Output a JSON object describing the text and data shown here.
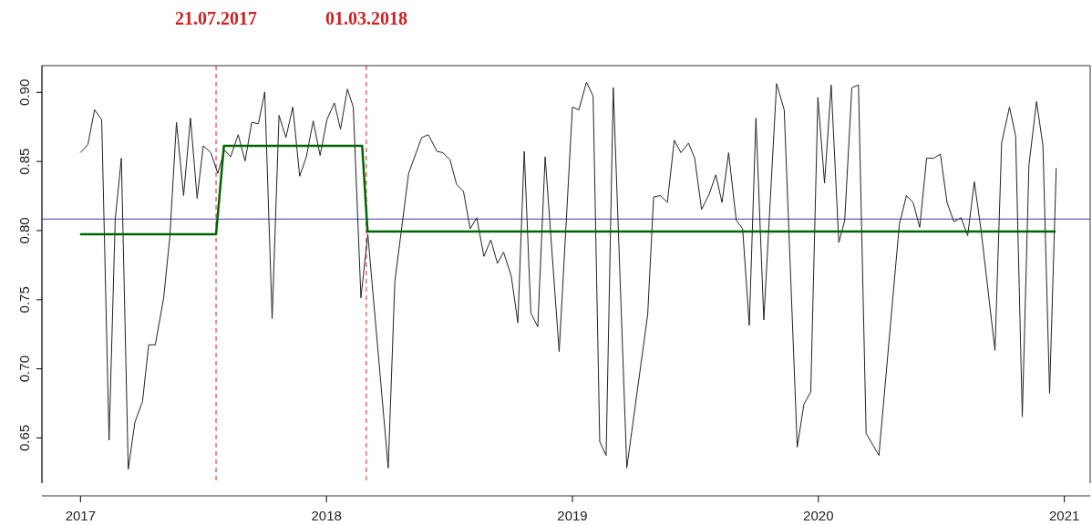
{
  "chart_data": {
    "type": "line",
    "marker": "none",
    "line_style": "solid",
    "grid": false,
    "xlim": [
      2016.845,
      2021.107
    ],
    "ylim": [
      0.617,
      0.919
    ],
    "xticks": [
      2017,
      2018,
      2019,
      2020,
      2021
    ],
    "yticks": [
      0.65,
      {
        "value": 0.7,
        "label": "0.70"
      },
      0.75,
      {
        "value": 0.8,
        "label": "0.80"
      },
      0.85,
      {
        "value": 0.9,
        "label": "0.90"
      }
    ],
    "series": [
      {
        "color": "#222222",
        "x": [
          2017.001,
          2017.032,
          2017.059,
          2017.088,
          2017.118,
          2017.143,
          2017.168,
          2017.196,
          2017.223,
          2017.254,
          2017.279,
          2017.306,
          2017.34,
          2017.365,
          2017.392,
          2017.421,
          2017.449,
          2017.476,
          2017.501,
          2017.532,
          2017.56,
          2017.587,
          2017.612,
          2017.643,
          2017.671,
          2017.698,
          2017.725,
          2017.751,
          2017.781,
          2017.809,
          2017.837,
          2017.865,
          2017.893,
          2017.92,
          2017.948,
          2017.976,
          2018.004,
          2018.034,
          2018.059,
          2018.087,
          2018.111,
          2018.142,
          2018.17,
          2018.253,
          2018.28,
          2018.336,
          2018.389,
          2018.416,
          2018.451,
          2018.475,
          2018.504,
          2018.531,
          2018.559,
          2018.586,
          2018.613,
          2018.642,
          2018.67,
          2018.697,
          2018.722,
          2018.753,
          2018.78,
          2018.806,
          2018.833,
          2018.861,
          2018.891,
          2018.948,
          2019.002,
          2019.028,
          2019.059,
          2019.086,
          2019.113,
          2019.139,
          2019.168,
          2019.223,
          2019.308,
          2019.332,
          2019.36,
          2019.388,
          2019.416,
          2019.443,
          2019.474,
          2019.499,
          2019.527,
          2019.558,
          2019.585,
          2019.61,
          2019.637,
          2019.668,
          2019.694,
          2019.721,
          2019.748,
          2019.78,
          2019.832,
          2019.863,
          2019.916,
          2019.943,
          2019.971,
          2020.0,
          2020.027,
          2020.054,
          2020.085,
          2020.109,
          2020.138,
          2020.165,
          2020.196,
          2020.248,
          2020.331,
          2020.36,
          2020.387,
          2020.414,
          2020.442,
          2020.471,
          2020.498,
          2020.525,
          2020.553,
          2020.582,
          2020.609,
          2020.636,
          2020.664,
          2020.72,
          2020.747,
          2020.779,
          2020.804,
          2020.831,
          2020.858,
          2020.889,
          2020.915,
          2020.942,
          2020.969
        ],
        "values": [
          0.856,
          0.862,
          0.887,
          0.88,
          0.648,
          0.808,
          0.852,
          0.627,
          0.661,
          0.676,
          0.717,
          0.717,
          0.751,
          0.795,
          0.878,
          0.825,
          0.881,
          0.823,
          0.861,
          0.856,
          0.841,
          0.858,
          0.853,
          0.869,
          0.85,
          0.878,
          0.877,
          0.9,
          0.736,
          0.883,
          0.867,
          0.889,
          0.839,
          0.853,
          0.879,
          0.854,
          0.88,
          0.892,
          0.873,
          0.902,
          0.889,
          0.751,
          0.797,
          0.628,
          0.763,
          0.841,
          0.867,
          0.869,
          0.857,
          0.856,
          0.851,
          0.833,
          0.828,
          0.801,
          0.809,
          0.781,
          0.793,
          0.776,
          0.784,
          0.767,
          0.733,
          0.857,
          0.74,
          0.73,
          0.853,
          0.712,
          0.889,
          0.887,
          0.907,
          0.897,
          0.647,
          0.637,
          0.903,
          0.628,
          0.739,
          0.824,
          0.825,
          0.82,
          0.865,
          0.856,
          0.863,
          0.852,
          0.815,
          0.826,
          0.84,
          0.82,
          0.856,
          0.807,
          0.801,
          0.731,
          0.881,
          0.735,
          0.906,
          0.887,
          0.643,
          0.674,
          0.683,
          0.896,
          0.834,
          0.905,
          0.791,
          0.807,
          0.903,
          0.905,
          0.653,
          0.637,
          0.804,
          0.825,
          0.82,
          0.802,
          0.852,
          0.852,
          0.855,
          0.82,
          0.806,
          0.809,
          0.796,
          0.835,
          0.799,
          0.713,
          0.863,
          0.889,
          0.868,
          0.665,
          0.847,
          0.893,
          0.861,
          0.682,
          0.845
        ]
      },
      {
        "type": "line",
        "color": "#006400",
        "x": [
          2017.0,
          2017.553,
          2017.585,
          2018.147,
          2018.169,
          2020.967
        ],
        "values": [
          0.797,
          0.797,
          0.861,
          0.861,
          0.799,
          0.799
        ]
      }
    ],
    "ref_lines": [
      {
        "axis": "y",
        "value": 0.808,
        "color": "#3a3aa8",
        "line_style": "solid"
      },
      {
        "axis": "x",
        "value": 2017.553,
        "label": "21.07.2017",
        "color": "#cc2222",
        "line_style": "dashed"
      },
      {
        "axis": "x",
        "value": 2018.164,
        "label": "01.03.2018",
        "color": "#cc2222",
        "line_style": "dashed"
      }
    ]
  }
}
